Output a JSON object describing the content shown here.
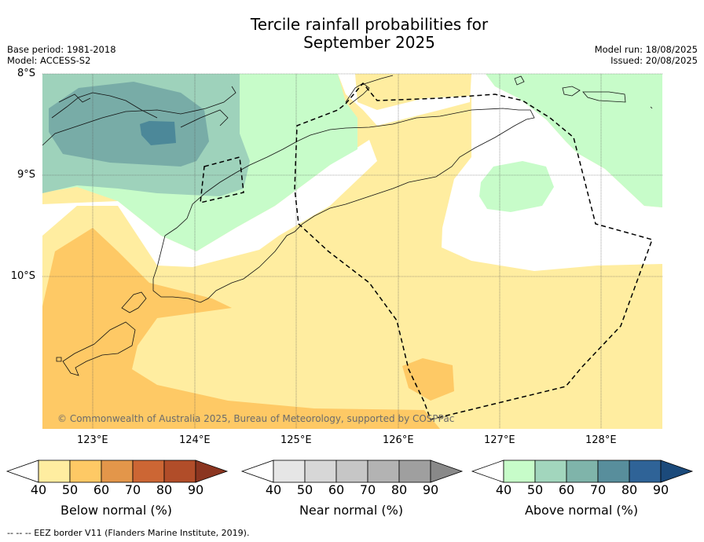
{
  "title_line1": "Tercile rainfall probabilities for",
  "title_line2": "September 2025",
  "meta_left": [
    "Base period: 1981-2018",
    "Model: ACCESS-S2"
  ],
  "meta_right": [
    "Model run: 18/08/2025",
    "Issued: 20/08/2025"
  ],
  "map": {
    "lat_labels": [
      "8°S",
      "9°S",
      "10°S"
    ],
    "lon_labels": [
      "123°E",
      "124°E",
      "125°E",
      "126°E",
      "127°E",
      "128°E"
    ],
    "copyright": "© Commonwealth of Australia 2025, Bureau of Meteorology, supported by COSPPac",
    "colors": {
      "below_50": "#ffeda0",
      "below_60": "#fec965",
      "above_50": "#c7fcc9",
      "above_60": "#9ed2bb",
      "above_70": "#78aca7",
      "above_80": "#4c8899",
      "above_90": "#3d6f94",
      "near_normal": "#ffffff"
    }
  },
  "colorbars": [
    {
      "label": "Below normal (%)",
      "ticks": [
        "40",
        "50",
        "60",
        "70",
        "80",
        "90"
      ],
      "colors": [
        "#ffffff",
        "#ffeda0",
        "#fec965",
        "#e3964a",
        "#cc6634",
        "#b14d29",
        "#8b3520"
      ]
    },
    {
      "label": "Near normal (%)",
      "ticks": [
        "40",
        "50",
        "60",
        "70",
        "80",
        "90"
      ],
      "colors": [
        "#ffffff",
        "#e6e6e6",
        "#d7d7d7",
        "#c6c6c6",
        "#b3b3b3",
        "#9f9f9f",
        "#898989"
      ]
    },
    {
      "label": "Above normal (%)",
      "ticks": [
        "40",
        "50",
        "60",
        "70",
        "80",
        "90"
      ],
      "colors": [
        "#ffffff",
        "#c7fcc9",
        "#a2d6bd",
        "#7fb4aa",
        "#588e9c",
        "#2f6397",
        "#1b4a7b"
      ]
    }
  ],
  "footnote": "--  --  -- EEZ border V11 (Flanders Marine Institute, 2019)."
}
